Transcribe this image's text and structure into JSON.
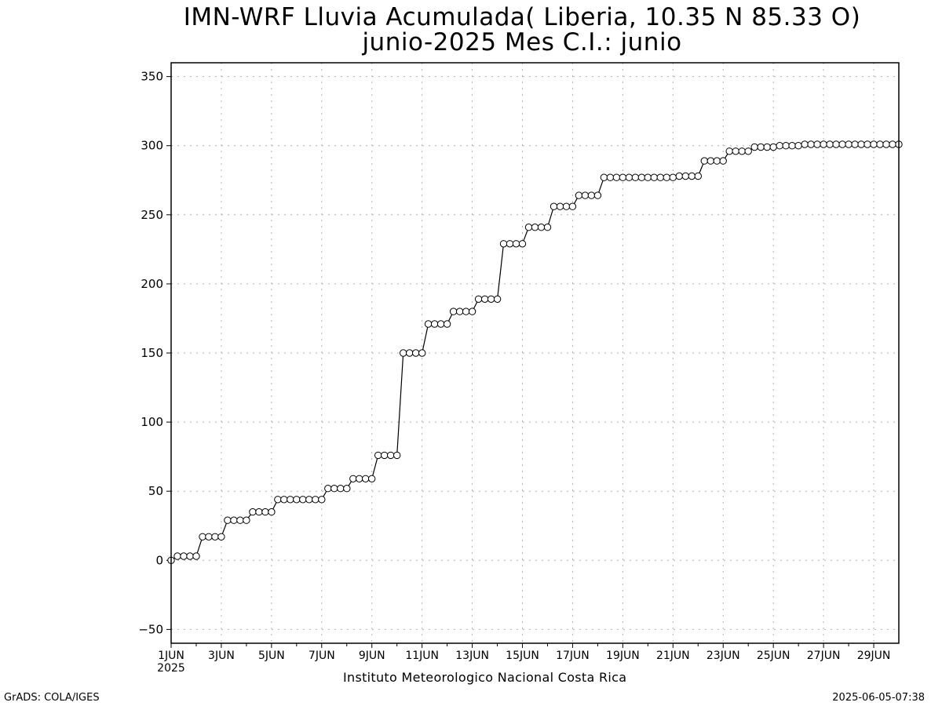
{
  "header": {
    "title_line1": "IMN-WRF  Lluvia Acumulada( Liberia, 10.35  N 85.33  O)",
    "title_line2": "junio-2025 Mes C.I.: junio"
  },
  "footer": {
    "credit": "Instituto Meteorologico Nacional Costa Rica",
    "grads": "GrADS: COLA/IGES",
    "timestamp": "2025-06-05-07:38"
  },
  "chart_data": {
    "type": "line",
    "title": "IMN-WRF  Lluvia Acumulada( Liberia, 10.35  N 85.33  O)",
    "subtitle": "junio-2025 Mes C.I.: junio",
    "xlabel": "",
    "ylabel": "",
    "ylim": [
      -60,
      360
    ],
    "xlim_days": [
      0,
      29
    ],
    "grid": true,
    "legend": "none",
    "colors": {
      "line": "#000000",
      "marker_fill": "#ffffff",
      "grid": "#b0b0b0"
    },
    "yticks": [
      -50,
      0,
      50,
      100,
      150,
      200,
      250,
      300,
      350
    ],
    "xtick_labels": [
      "1JUN",
      "3JUN",
      "5JUN",
      "7JUN",
      "9JUN",
      "11JUN",
      "13JUN",
      "15JUN",
      "17JUN",
      "19JUN",
      "21JUN",
      "23JUN",
      "25JUN",
      "27JUN",
      "29JUN"
    ],
    "xtick_year": "2025",
    "time_step_hours": 6,
    "series": [
      {
        "values": [
          0,
          3,
          3,
          3,
          3,
          17,
          17,
          17,
          17,
          29,
          29,
          29,
          29,
          35,
          35,
          35,
          35,
          44,
          44,
          44,
          44,
          44,
          44,
          44,
          44,
          52,
          52,
          52,
          52,
          59,
          59,
          59,
          59,
          76,
          76,
          76,
          76,
          150,
          150,
          150,
          150,
          171,
          171,
          171,
          171,
          180,
          180,
          180,
          180,
          189,
          189,
          189,
          189,
          229,
          229,
          229,
          229,
          241,
          241,
          241,
          241,
          256,
          256,
          256,
          256,
          264,
          264,
          264,
          264,
          277,
          277,
          277,
          277,
          277,
          277,
          277,
          277,
          277,
          277,
          277,
          277,
          278,
          278,
          278,
          278,
          289,
          289,
          289,
          289,
          296,
          296,
          296,
          296,
          299,
          299,
          299,
          299,
          300,
          300,
          300,
          300,
          301,
          301,
          301,
          301,
          301,
          301,
          301,
          301,
          301,
          301,
          301,
          301,
          301,
          301,
          301,
          301
        ]
      }
    ]
  }
}
